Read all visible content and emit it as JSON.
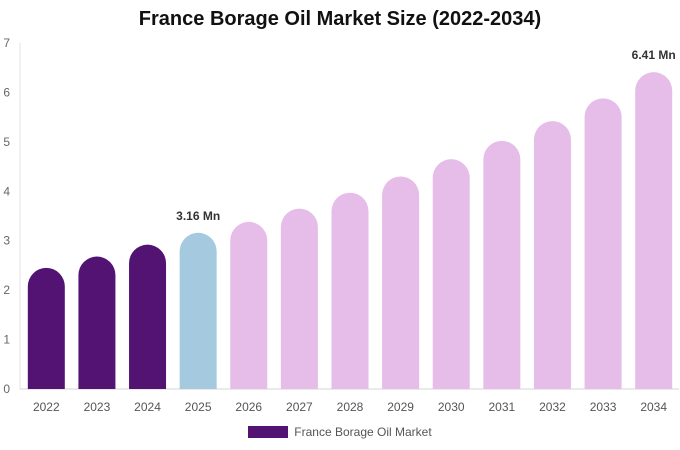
{
  "chart_data": {
    "type": "bar",
    "title": "France Borage Oil Market Size (2022-2034)",
    "categories": [
      "2022",
      "2023",
      "2024",
      "2025",
      "2026",
      "2027",
      "2028",
      "2029",
      "2030",
      "2031",
      "2032",
      "2033",
      "2034"
    ],
    "series": [
      {
        "name": "France Borage Oil Market",
        "values": [
          2.45,
          2.68,
          2.92,
          3.16,
          3.38,
          3.65,
          3.97,
          4.3,
          4.65,
          5.02,
          5.42,
          5.88,
          6.41
        ]
      }
    ],
    "bar_colors": [
      "#531373",
      "#531373",
      "#531373",
      "#a5cadf",
      "#e6bde8",
      "#e6bde8",
      "#e6bde8",
      "#e6bde8",
      "#e6bde8",
      "#e6bde8",
      "#e6bde8",
      "#e6bde8",
      "#e6bde8"
    ],
    "data_labels": [
      {
        "index": 3,
        "text": "3.16 Mn"
      },
      {
        "index": 12,
        "text": "6.41 Mn"
      }
    ],
    "y_ticks": [
      "0",
      "1",
      "2",
      "3",
      "4",
      "5",
      "6",
      "7"
    ],
    "ylim": [
      0,
      7
    ],
    "xlabel": "",
    "ylabel": "",
    "grid": false,
    "legend_position": "bottom",
    "legend_color": "#531373"
  }
}
